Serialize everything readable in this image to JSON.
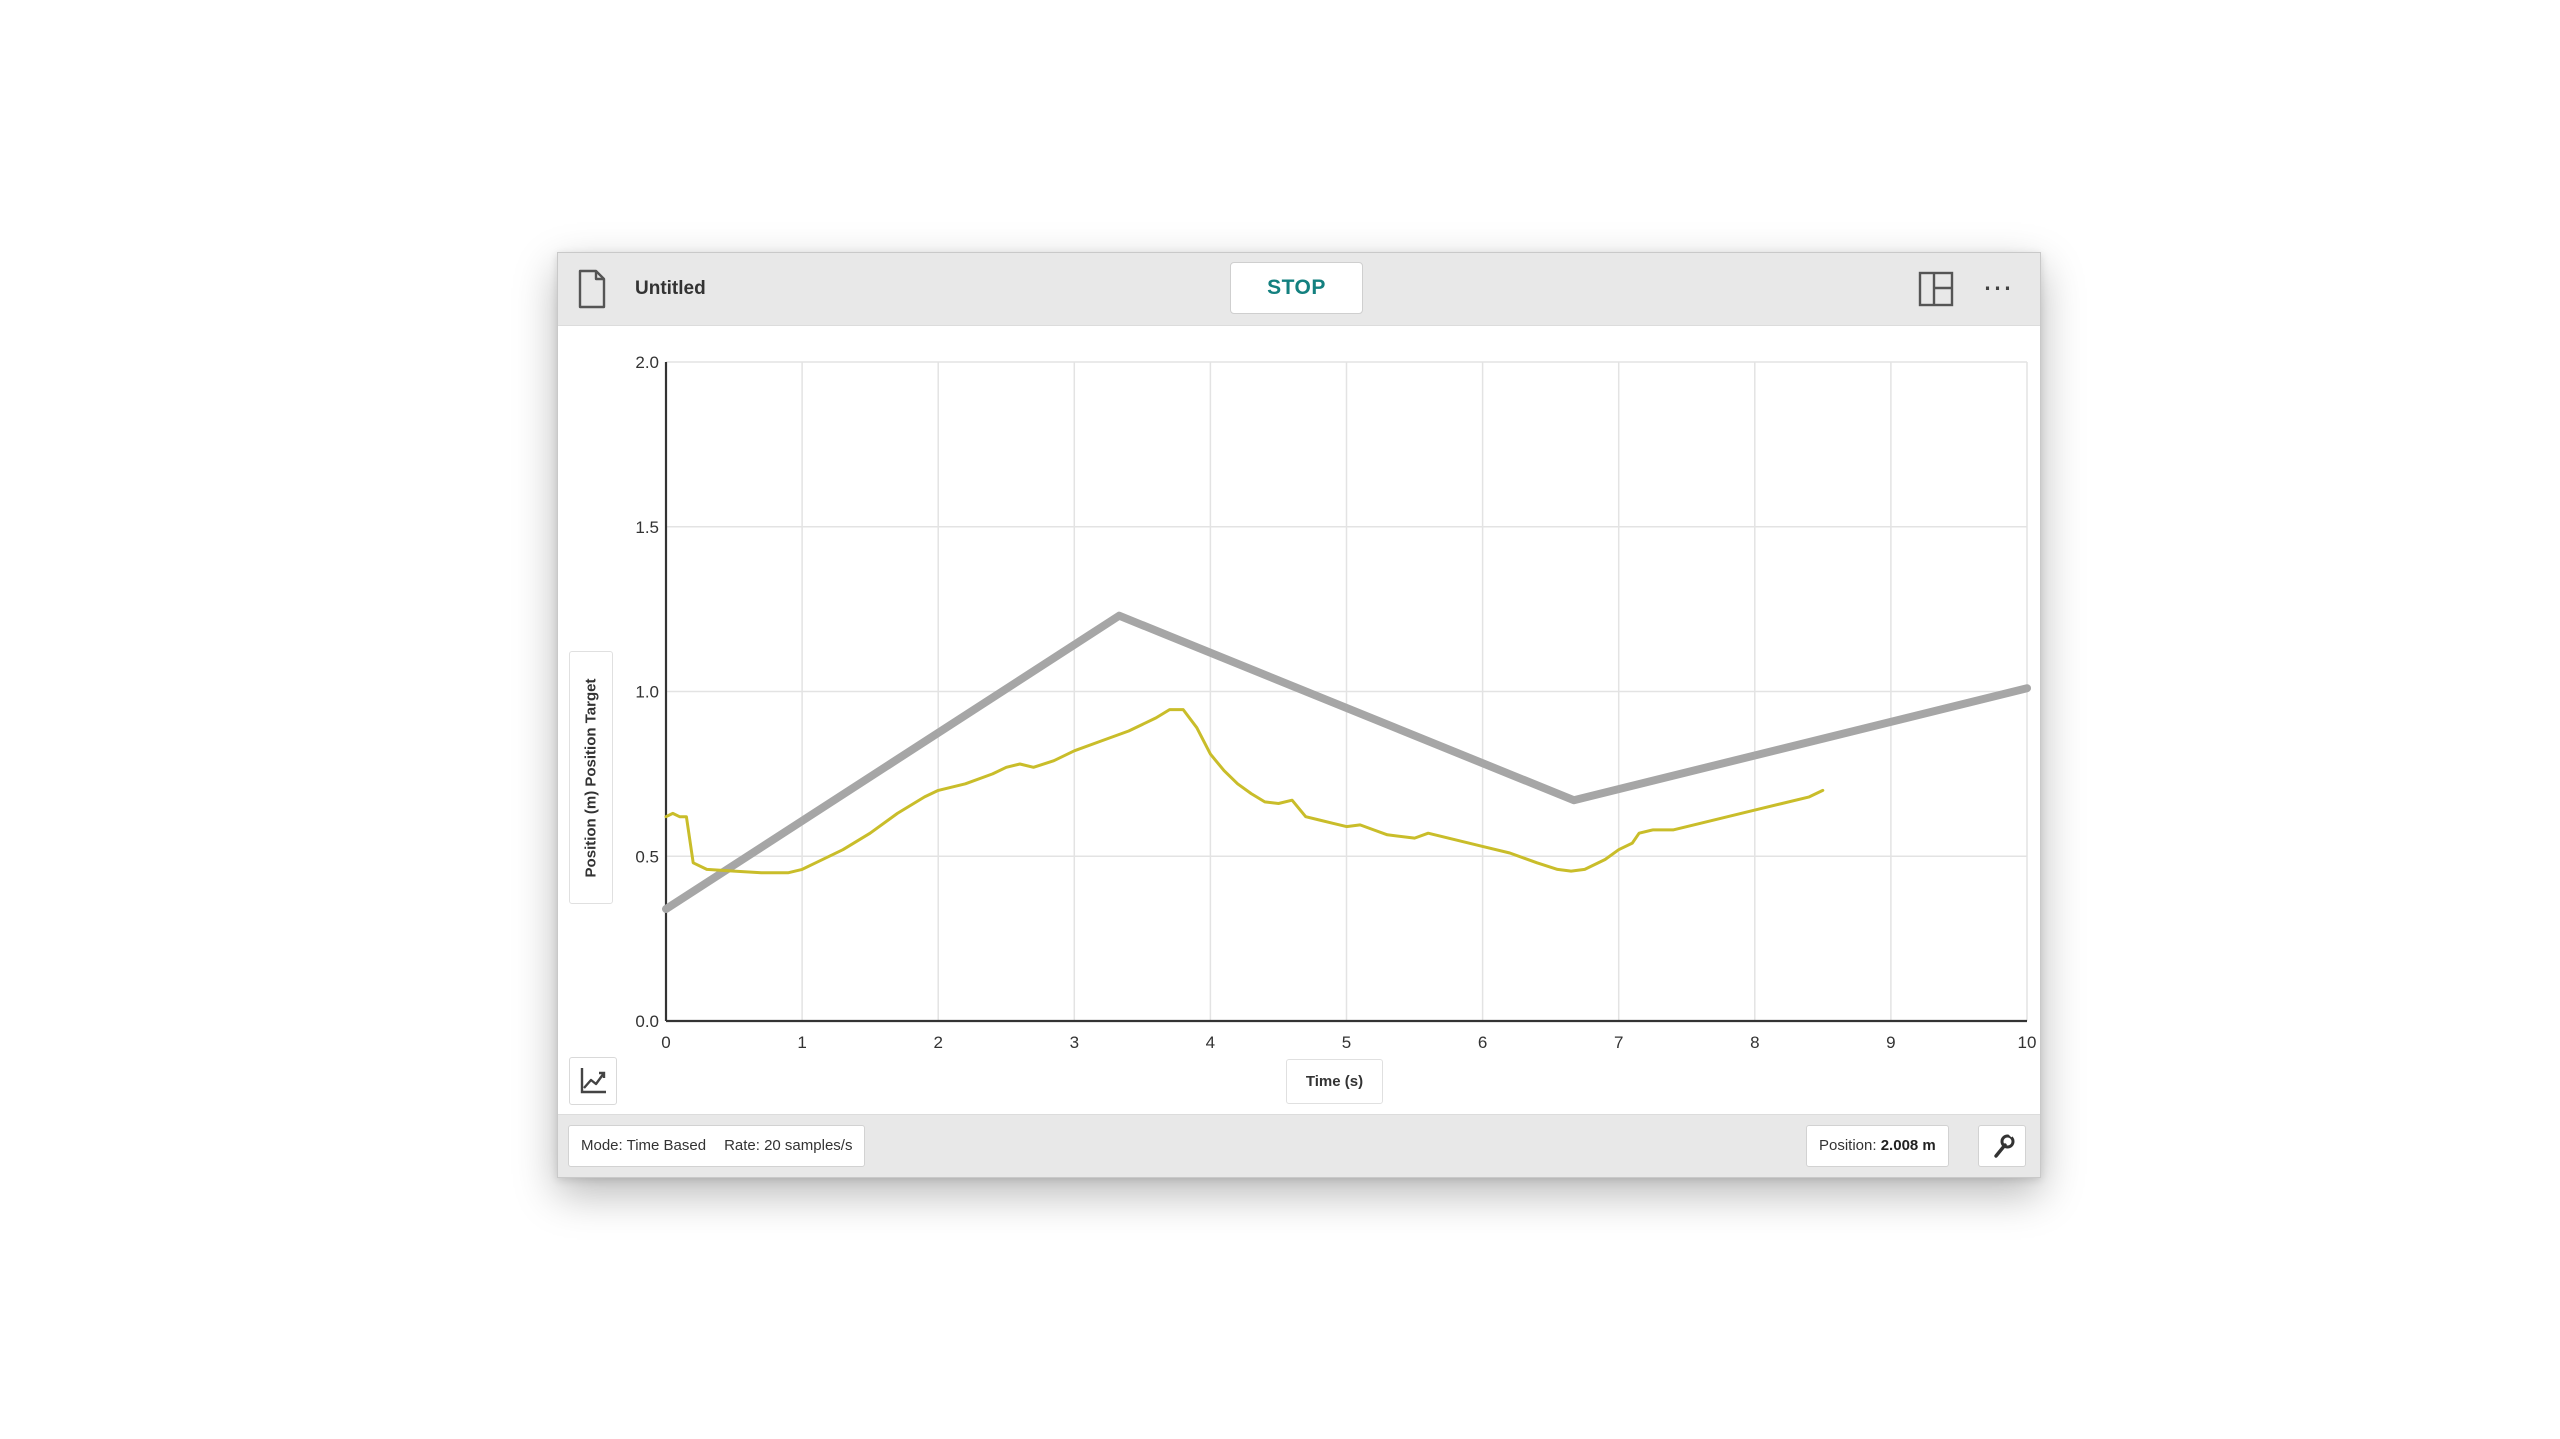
{
  "header": {
    "title": "Untitled",
    "stop_label": "STOP",
    "icons": [
      "file-icon",
      "layout-icon",
      "more-icon"
    ],
    "more_glyph": "⋯"
  },
  "footer": {
    "mode_label": "Mode: Time Based",
    "rate_label": "Rate: 20 samples/s",
    "readout_label": "Position:",
    "readout_value": "2.008 m",
    "wrench_icon": "wrench-icon"
  },
  "colors": {
    "accent": "#13807f",
    "measured_series": "#c9bd2a",
    "target_series": "#a6a6a6",
    "grid": "#e3e3e3",
    "axis": "#333333"
  },
  "chart_data": {
    "type": "line",
    "xlabel": "Time (s)",
    "ylabel": "Position (m) Position Target",
    "xlim": [
      0,
      10
    ],
    "ylim": [
      0,
      2.0
    ],
    "x_ticks": [
      "0",
      "1",
      "2",
      "3",
      "4",
      "5",
      "6",
      "7",
      "8",
      "9",
      "10"
    ],
    "y_ticks": [
      "0.0",
      "0.5",
      "1.0",
      "1.5",
      "2.0"
    ],
    "grid": true,
    "series": [
      {
        "role": "target",
        "points": [
          [
            0,
            0.34
          ],
          [
            3.33,
            1.23
          ],
          [
            6.67,
            0.67
          ],
          [
            10,
            1.01
          ]
        ]
      },
      {
        "role": "measured",
        "points": [
          [
            0,
            0.62
          ],
          [
            0.05,
            0.63
          ],
          [
            0.1,
            0.62
          ],
          [
            0.15,
            0.62
          ],
          [
            0.2,
            0.48
          ],
          [
            0.3,
            0.46
          ],
          [
            0.5,
            0.455
          ],
          [
            0.7,
            0.45
          ],
          [
            0.9,
            0.45
          ],
          [
            1.0,
            0.46
          ],
          [
            1.1,
            0.48
          ],
          [
            1.3,
            0.52
          ],
          [
            1.5,
            0.57
          ],
          [
            1.7,
            0.63
          ],
          [
            1.9,
            0.68
          ],
          [
            2.0,
            0.7
          ],
          [
            2.2,
            0.72
          ],
          [
            2.4,
            0.75
          ],
          [
            2.5,
            0.77
          ],
          [
            2.6,
            0.78
          ],
          [
            2.7,
            0.77
          ],
          [
            2.85,
            0.79
          ],
          [
            3.0,
            0.82
          ],
          [
            3.2,
            0.85
          ],
          [
            3.4,
            0.88
          ],
          [
            3.6,
            0.92
          ],
          [
            3.7,
            0.945
          ],
          [
            3.8,
            0.945
          ],
          [
            3.9,
            0.89
          ],
          [
            4.0,
            0.81
          ],
          [
            4.1,
            0.76
          ],
          [
            4.2,
            0.72
          ],
          [
            4.3,
            0.69
          ],
          [
            4.4,
            0.665
          ],
          [
            4.5,
            0.66
          ],
          [
            4.6,
            0.67
          ],
          [
            4.7,
            0.62
          ],
          [
            4.8,
            0.61
          ],
          [
            4.9,
            0.6
          ],
          [
            5.0,
            0.59
          ],
          [
            5.1,
            0.595
          ],
          [
            5.2,
            0.58
          ],
          [
            5.3,
            0.565
          ],
          [
            5.5,
            0.555
          ],
          [
            5.6,
            0.57
          ],
          [
            5.8,
            0.55
          ],
          [
            6.0,
            0.53
          ],
          [
            6.2,
            0.51
          ],
          [
            6.4,
            0.48
          ],
          [
            6.55,
            0.46
          ],
          [
            6.65,
            0.455
          ],
          [
            6.75,
            0.46
          ],
          [
            6.9,
            0.49
          ],
          [
            7.0,
            0.52
          ],
          [
            7.1,
            0.54
          ],
          [
            7.15,
            0.57
          ],
          [
            7.25,
            0.58
          ],
          [
            7.4,
            0.58
          ],
          [
            7.6,
            0.6
          ],
          [
            7.8,
            0.62
          ],
          [
            8.0,
            0.64
          ],
          [
            8.2,
            0.66
          ],
          [
            8.4,
            0.68
          ],
          [
            8.5,
            0.7
          ]
        ]
      }
    ]
  }
}
